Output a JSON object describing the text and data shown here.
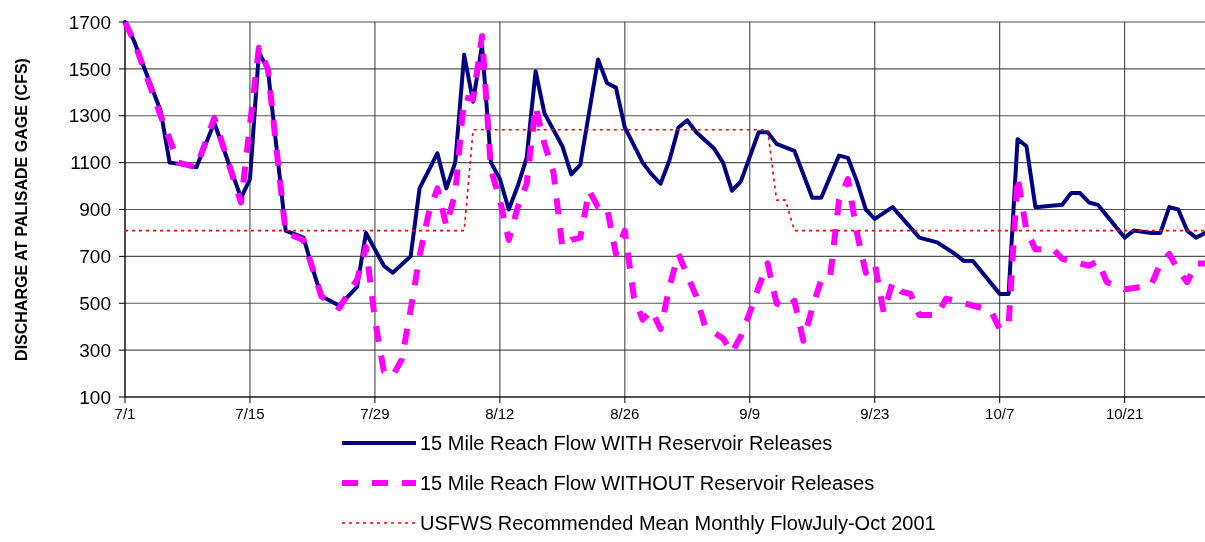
{
  "chart_data": {
    "type": "line",
    "ylabel": "DISCHARGE AT PALISADE GAGE (CFS)",
    "xlim": [
      "2001-07-01",
      "2001-10-30"
    ],
    "xticks": [
      {
        "value": "2001-07-01",
        "label": "7/1"
      },
      {
        "value": "2001-07-15",
        "label": "7/15"
      },
      {
        "value": "2001-07-29",
        "label": "7/29"
      },
      {
        "value": "2001-08-12",
        "label": "8/12"
      },
      {
        "value": "2001-08-26",
        "label": "8/26"
      },
      {
        "value": "2001-09-09",
        "label": "9/9"
      },
      {
        "value": "2001-09-23",
        "label": "9/23"
      },
      {
        "value": "2001-10-07",
        "label": "10/7"
      },
      {
        "value": "2001-10-21",
        "label": "10/21"
      }
    ],
    "ylim": [
      100,
      1700
    ],
    "yticks": [
      100,
      300,
      500,
      700,
      900,
      1100,
      1300,
      1500,
      1700
    ],
    "grid": true,
    "legend": "bottom",
    "marker": "none",
    "series": [
      {
        "name": "15 Mile Reach Flow WITH Reservoir Releases",
        "color": "#000080",
        "line_style": "solid",
        "x": [
          "2001-07-01",
          "2001-07-02",
          "2001-07-05",
          "2001-07-06",
          "2001-07-08",
          "2001-07-09",
          "2001-07-11",
          "2001-07-14",
          "2001-07-15",
          "2001-07-16",
          "2001-07-17",
          "2001-07-19",
          "2001-07-21",
          "2001-07-22",
          "2001-07-23",
          "2001-07-25",
          "2001-07-27",
          "2001-07-28",
          "2001-07-29",
          "2001-07-30",
          "2001-07-31",
          "2001-08-02",
          "2001-08-03",
          "2001-08-05",
          "2001-08-06",
          "2001-08-07",
          "2001-08-08",
          "2001-08-09",
          "2001-08-10",
          "2001-08-11",
          "2001-08-12",
          "2001-08-13",
          "2001-08-14",
          "2001-08-15",
          "2001-08-16",
          "2001-08-17",
          "2001-08-19",
          "2001-08-20",
          "2001-08-21",
          "2001-08-23",
          "2001-08-24",
          "2001-08-25",
          "2001-08-26",
          "2001-08-28",
          "2001-08-29",
          "2001-08-30",
          "2001-08-31",
          "2001-09-01",
          "2001-09-02",
          "2001-09-03",
          "2001-09-05",
          "2001-09-06",
          "2001-09-07",
          "2001-09-08",
          "2001-09-10",
          "2001-09-11",
          "2001-09-12",
          "2001-09-14",
          "2001-09-16",
          "2001-09-17",
          "2001-09-19",
          "2001-09-20",
          "2001-09-21",
          "2001-09-22",
          "2001-09-23",
          "2001-09-25",
          "2001-09-28",
          "2001-09-30",
          "2001-10-02",
          "2001-10-03",
          "2001-10-04",
          "2001-10-07",
          "2001-10-08",
          "2001-10-09",
          "2001-10-10",
          "2001-10-11",
          "2001-10-14",
          "2001-10-15",
          "2001-10-16",
          "2001-10-17",
          "2001-10-18",
          "2001-10-21",
          "2001-10-22",
          "2001-10-24",
          "2001-10-25",
          "2001-10-26",
          "2001-10-27",
          "2001-10-28",
          "2001-10-29",
          "2001-10-30"
        ],
        "values": [
          1700,
          1620,
          1320,
          1100,
          1090,
          1080,
          1270,
          950,
          1030,
          1570,
          1500,
          810,
          780,
          650,
          530,
          490,
          570,
          800,
          730,
          660,
          630,
          700,
          990,
          1140,
          990,
          1100,
          1560,
          1360,
          1600,
          1100,
          1030,
          900,
          1000,
          1120,
          1490,
          1310,
          1170,
          1050,
          1090,
          1540,
          1440,
          1420,
          1250,
          1100,
          1050,
          1010,
          1110,
          1250,
          1280,
          1230,
          1160,
          1100,
          980,
          1020,
          1230,
          1230,
          1180,
          1150,
          950,
          950,
          1130,
          1120,
          1020,
          900,
          860,
          910,
          780,
          760,
          710,
          680,
          680,
          540,
          540,
          1200,
          1170,
          910,
          920,
          970,
          970,
          930,
          920,
          780,
          810,
          800,
          800,
          910,
          900,
          810,
          780,
          800
        ]
      },
      {
        "name": "15 Mile Reach Flow WITHOUT Reservoir Releases",
        "color": "#ff00ff",
        "line_style": "dashed",
        "x": [
          "2001-07-01",
          "2001-07-02",
          "2001-07-05",
          "2001-07-07",
          "2001-07-09",
          "2001-07-11",
          "2001-07-14",
          "2001-07-16",
          "2001-07-17",
          "2001-07-19",
          "2001-07-21",
          "2001-07-23",
          "2001-07-25",
          "2001-07-27",
          "2001-07-28",
          "2001-07-29",
          "2001-07-30",
          "2001-07-31",
          "2001-08-01",
          "2001-08-02",
          "2001-08-03",
          "2001-08-04",
          "2001-08-05",
          "2001-08-06",
          "2001-08-07",
          "2001-08-08",
          "2001-08-09",
          "2001-08-10",
          "2001-08-11",
          "2001-08-12",
          "2001-08-13",
          "2001-08-14",
          "2001-08-15",
          "2001-08-16",
          "2001-08-17",
          "2001-08-18",
          "2001-08-19",
          "2001-08-20",
          "2001-08-21",
          "2001-08-22",
          "2001-08-23",
          "2001-08-24",
          "2001-08-25",
          "2001-08-26",
          "2001-08-27",
          "2001-08-28",
          "2001-08-29",
          "2001-08-30",
          "2001-08-31",
          "2001-09-01",
          "2001-09-03",
          "2001-09-04",
          "2001-09-06",
          "2001-09-07",
          "2001-09-08",
          "2001-09-09",
          "2001-09-10",
          "2001-09-11",
          "2001-09-12",
          "2001-09-13",
          "2001-09-14",
          "2001-09-15",
          "2001-09-16",
          "2001-09-17",
          "2001-09-18",
          "2001-09-19",
          "2001-09-20",
          "2001-09-21",
          "2001-09-22",
          "2001-09-23",
          "2001-09-24",
          "2001-09-25",
          "2001-09-26",
          "2001-09-27",
          "2001-09-28",
          "2001-09-30",
          "2001-10-01",
          "2001-10-02",
          "2001-10-05",
          "2001-10-06",
          "2001-10-07",
          "2001-10-08",
          "2001-10-09",
          "2001-10-10",
          "2001-10-11",
          "2001-10-13",
          "2001-10-14",
          "2001-10-15",
          "2001-10-17",
          "2001-10-18",
          "2001-10-19",
          "2001-10-21",
          "2001-10-23",
          "2001-10-24",
          "2001-10-25",
          "2001-10-26",
          "2001-10-27",
          "2001-10-28",
          "2001-10-29",
          "2001-10-30"
        ],
        "values": [
          1700,
          1620,
          1300,
          1100,
          1080,
          1290,
          930,
          1590,
          1500,
          800,
          770,
          530,
          480,
          600,
          740,
          430,
          210,
          190,
          260,
          470,
          700,
          880,
          990,
          830,
          970,
          1380,
          1370,
          1640,
          1070,
          940,
          770,
          910,
          1010,
          1340,
          1180,
          1060,
          740,
          770,
          780,
          980,
          910,
          910,
          710,
          810,
          530,
          430,
          470,
          390,
          570,
          710,
          530,
          400,
          350,
          290,
          360,
          460,
          570,
          670,
          500,
          480,
          510,
          340,
          480,
          600,
          610,
          940,
          1030,
          800,
          630,
          670,
          460,
          590,
          550,
          540,
          450,
          450,
          520,
          510,
          480,
          470,
          390,
          410,
          1040,
          810,
          730,
          730,
          690,
          680,
          660,
          680,
          590,
          560,
          570,
          580,
          670,
          710,
          640,
          590,
          670,
          670
        ]
      },
      {
        "name": "USFWS Recommended Mean Monthly FlowJuly-Oct 2001",
        "color": "#ff0000",
        "line_style": "dotted",
        "x": [
          "2001-07-01",
          "2001-08-08",
          "2001-08-09",
          "2001-09-11",
          "2001-09-12",
          "2001-09-13",
          "2001-09-14",
          "2001-10-30"
        ],
        "values": [
          810,
          810,
          1240,
          1240,
          940,
          940,
          810,
          810
        ]
      }
    ]
  }
}
